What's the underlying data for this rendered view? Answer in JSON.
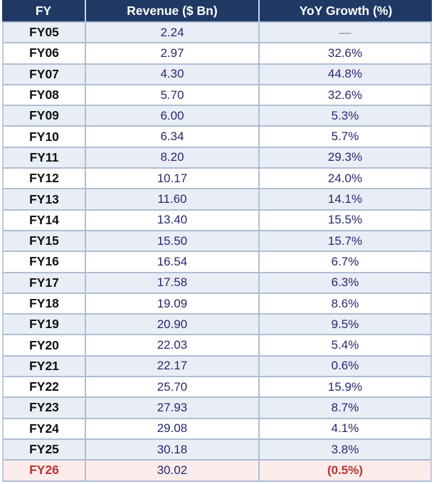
{
  "columns": [
    {
      "label": "FY"
    },
    {
      "label": "Revenue ($ Bn)"
    },
    {
      "label": "YoY Growth (%)"
    }
  ],
  "rows": [
    {
      "fy": "FY05",
      "revenue": "2.24",
      "yoy": "—",
      "yoy_style": "muted"
    },
    {
      "fy": "FY06",
      "revenue": "2.97",
      "yoy": "32.6%"
    },
    {
      "fy": "FY07",
      "revenue": "4.30",
      "yoy": "44.8%"
    },
    {
      "fy": "FY08",
      "revenue": "5.70",
      "yoy": "32.6%"
    },
    {
      "fy": "FY09",
      "revenue": "6.00",
      "yoy": "5.3%"
    },
    {
      "fy": "FY10",
      "revenue": "6.34",
      "yoy": "5.7%"
    },
    {
      "fy": "FY11",
      "revenue": "8.20",
      "yoy": "29.3%"
    },
    {
      "fy": "FY12",
      "revenue": "10.17",
      "yoy": "24.0%"
    },
    {
      "fy": "FY13",
      "revenue": "11.60",
      "yoy": "14.1%"
    },
    {
      "fy": "FY14",
      "revenue": "13.40",
      "yoy": "15.5%"
    },
    {
      "fy": "FY15",
      "revenue": "15.50",
      "yoy": "15.7%"
    },
    {
      "fy": "FY16",
      "revenue": "16.54",
      "yoy": "6.7%"
    },
    {
      "fy": "FY17",
      "revenue": "17.58",
      "yoy": "6.3%"
    },
    {
      "fy": "FY18",
      "revenue": "19.09",
      "yoy": "8.6%"
    },
    {
      "fy": "FY19",
      "revenue": "20.90",
      "yoy": "9.5%"
    },
    {
      "fy": "FY20",
      "revenue": "22.03",
      "yoy": "5.4%"
    },
    {
      "fy": "FY21",
      "revenue": "22.17",
      "yoy": "0.6%"
    },
    {
      "fy": "FY22",
      "revenue": "25.70",
      "yoy": "15.9%"
    },
    {
      "fy": "FY23",
      "revenue": "27.93",
      "yoy": "8.7%"
    },
    {
      "fy": "FY24",
      "revenue": "29.08",
      "yoy": "4.1%"
    },
    {
      "fy": "FY25",
      "revenue": "30.18",
      "yoy": "3.8%"
    },
    {
      "fy": "FY26",
      "revenue": "30.02",
      "yoy": "(0.5%)",
      "highlight": true
    }
  ],
  "colors": {
    "header_bg": "#1F3864",
    "header_text": "#FFFFFF",
    "band_blue": "#E9EEF6",
    "band_white": "#FFFFFF",
    "highlight_bg": "#FBECEB",
    "value_text": "#28286E",
    "fy_text": "#111111",
    "negative_text": "#BB342E",
    "muted_dash": "#7F7F7F",
    "border": "#AFBDD4"
  },
  "chart_data": {
    "type": "table",
    "title": "",
    "columns": [
      "FY",
      "Revenue ($ Bn)",
      "YoY Growth (%)"
    ],
    "categories": [
      "FY05",
      "FY06",
      "FY07",
      "FY08",
      "FY09",
      "FY10",
      "FY11",
      "FY12",
      "FY13",
      "FY14",
      "FY15",
      "FY16",
      "FY17",
      "FY18",
      "FY19",
      "FY20",
      "FY21",
      "FY22",
      "FY23",
      "FY24",
      "FY25",
      "FY26"
    ],
    "series": [
      {
        "name": "Revenue ($ Bn)",
        "values": [
          2.24,
          2.97,
          4.3,
          5.7,
          6.0,
          6.34,
          8.2,
          10.17,
          11.6,
          13.4,
          15.5,
          16.54,
          17.58,
          19.09,
          20.9,
          22.03,
          22.17,
          25.7,
          27.93,
          29.08,
          30.18,
          30.02
        ]
      },
      {
        "name": "YoY Growth (%)",
        "values": [
          null,
          32.6,
          44.8,
          32.6,
          5.3,
          5.7,
          29.3,
          24.0,
          14.1,
          15.5,
          15.7,
          6.7,
          6.3,
          8.6,
          9.5,
          5.4,
          0.6,
          15.9,
          8.7,
          4.1,
          3.8,
          -0.5
        ]
      }
    ],
    "layout_hints": {
      "banded_rows": true,
      "highlighted_last_row": "FY26",
      "negative_value_format": "parentheses-red"
    }
  }
}
